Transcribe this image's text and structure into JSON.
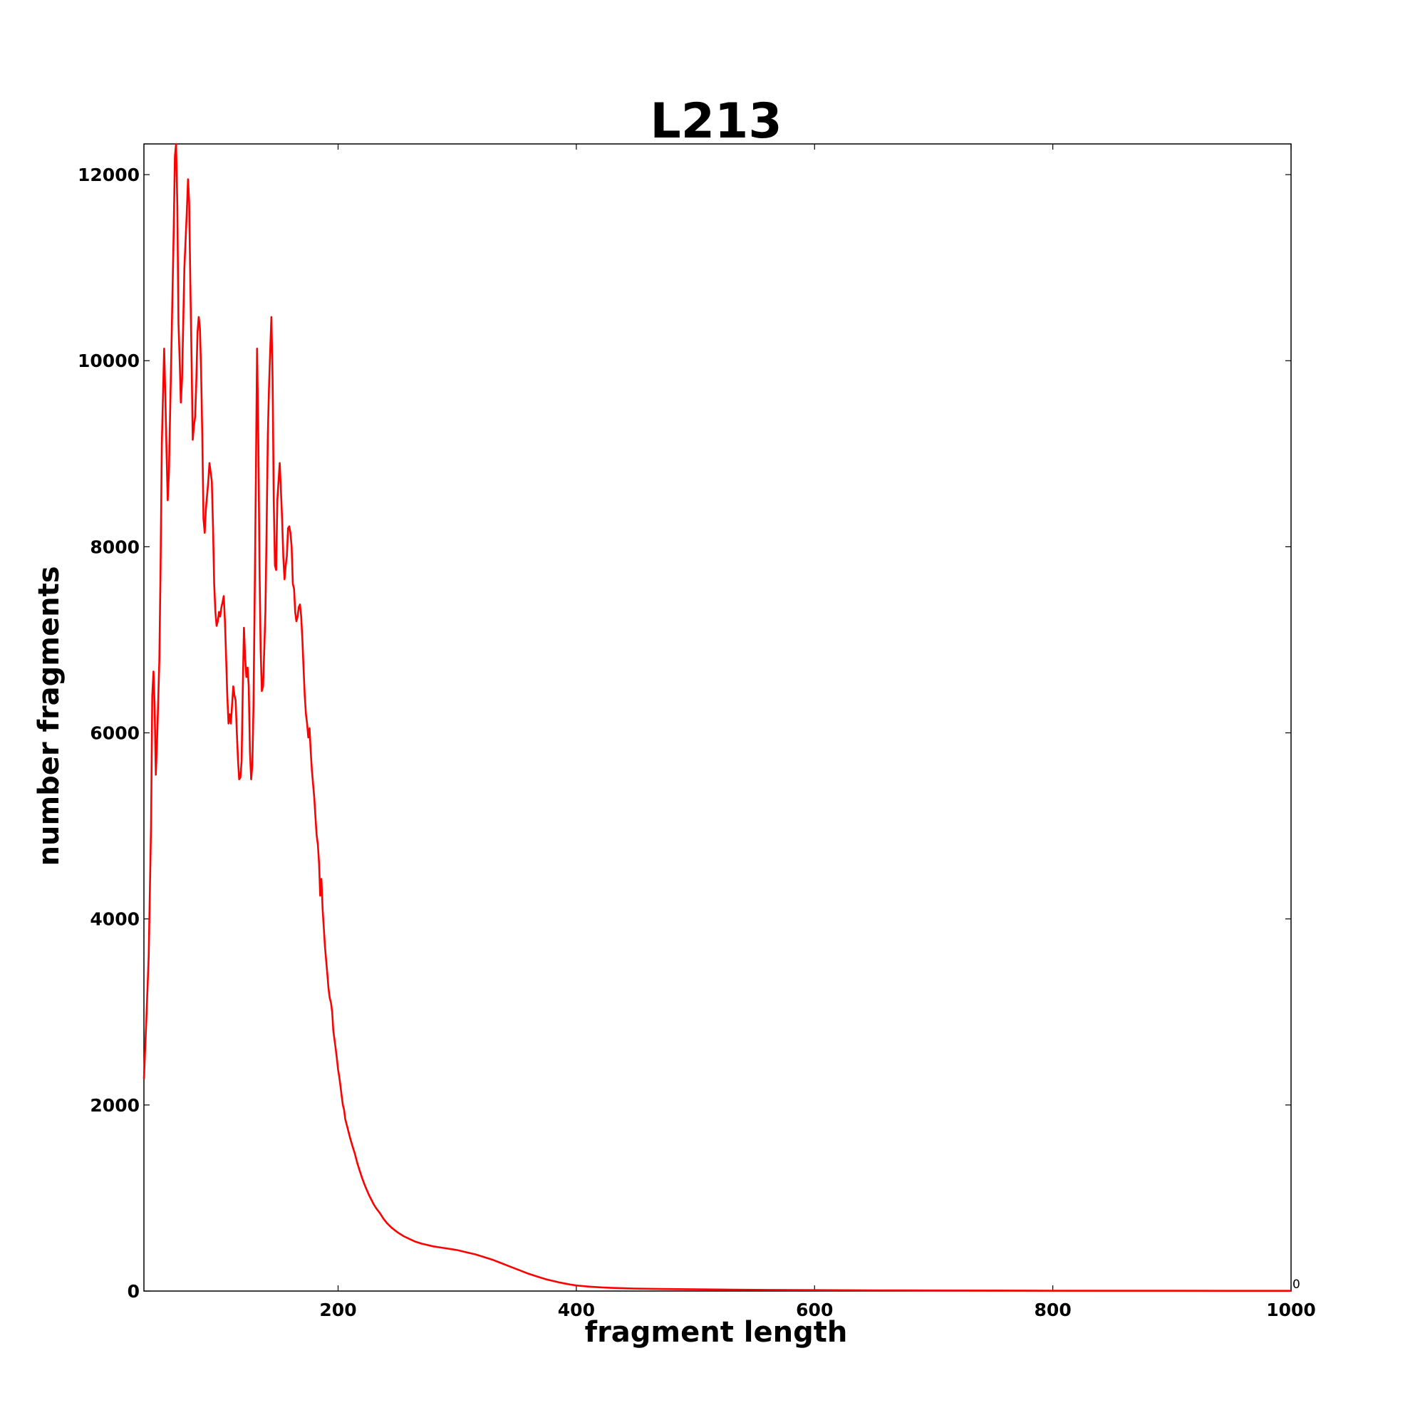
{
  "chart_data": {
    "type": "line",
    "title": "L213",
    "xlabel": "fragment length",
    "ylabel": "number fragments",
    "xlim": [
      37,
      1000
    ],
    "ylim": [
      0,
      12330
    ],
    "x_ticks": [
      200,
      400,
      600,
      800,
      1000
    ],
    "y_ticks": [
      0,
      2000,
      4000,
      6000,
      8000,
      10000,
      12000
    ],
    "x_tick_labels": [
      "200",
      "400",
      "600",
      "800",
      "1000"
    ],
    "y_tick_labels": [
      "0",
      "2000",
      "4000",
      "6000",
      "8000",
      "10000",
      "12000"
    ],
    "corner_annotation": "0",
    "grid": false,
    "legend": "none",
    "series": [
      {
        "color": "#ff0000",
        "points": [
          [
            37,
            2280
          ],
          [
            39,
            2900
          ],
          [
            41,
            3600
          ],
          [
            43,
            5000
          ],
          [
            44,
            6400
          ],
          [
            45,
            6660
          ],
          [
            46,
            6300
          ],
          [
            47,
            5550
          ],
          [
            48,
            5900
          ],
          [
            50,
            6800
          ],
          [
            51,
            7800
          ],
          [
            52,
            9100
          ],
          [
            54,
            10130
          ],
          [
            55,
            9600
          ],
          [
            56,
            9000
          ],
          [
            57,
            8500
          ],
          [
            58,
            8800
          ],
          [
            60,
            10100
          ],
          [
            62,
            11400
          ],
          [
            63,
            12200
          ],
          [
            64,
            12330
          ],
          [
            65,
            11700
          ],
          [
            66,
            10400
          ],
          [
            67,
            10000
          ],
          [
            68,
            9550
          ],
          [
            69,
            9800
          ],
          [
            71,
            11000
          ],
          [
            73,
            11600
          ],
          [
            74,
            11950
          ],
          [
            75,
            11700
          ],
          [
            76,
            10800
          ],
          [
            77,
            10000
          ],
          [
            78,
            9150
          ],
          [
            79,
            9300
          ],
          [
            80,
            9400
          ],
          [
            81,
            9800
          ],
          [
            82,
            10300
          ],
          [
            83,
            10470
          ],
          [
            84,
            10350
          ],
          [
            85,
            9900
          ],
          [
            86,
            9200
          ],
          [
            87,
            8300
          ],
          [
            88,
            8150
          ],
          [
            89,
            8400
          ],
          [
            91,
            8700
          ],
          [
            92,
            8900
          ],
          [
            94,
            8700
          ],
          [
            95,
            8200
          ],
          [
            96,
            7600
          ],
          [
            97,
            7300
          ],
          [
            98,
            7150
          ],
          [
            99,
            7200
          ],
          [
            100,
            7300
          ],
          [
            101,
            7250
          ],
          [
            102,
            7350
          ],
          [
            103,
            7400
          ],
          [
            104,
            7470
          ],
          [
            105,
            7200
          ],
          [
            106,
            6800
          ],
          [
            107,
            6400
          ],
          [
            108,
            6100
          ],
          [
            109,
            6200
          ],
          [
            110,
            6100
          ],
          [
            111,
            6300
          ],
          [
            112,
            6500
          ],
          [
            113,
            6400
          ],
          [
            114,
            6350
          ],
          [
            115,
            6000
          ],
          [
            116,
            5700
          ],
          [
            117,
            5500
          ],
          [
            118,
            5520
          ],
          [
            119,
            5700
          ],
          [
            120,
            6500
          ],
          [
            121,
            7130
          ],
          [
            122,
            6800
          ],
          [
            123,
            6600
          ],
          [
            124,
            6700
          ],
          [
            125,
            6500
          ],
          [
            126,
            5800
          ],
          [
            127,
            5500
          ],
          [
            128,
            5650
          ],
          [
            129,
            6300
          ],
          [
            130,
            7500
          ],
          [
            131,
            8800
          ],
          [
            132,
            10130
          ],
          [
            133,
            9200
          ],
          [
            134,
            7800
          ],
          [
            135,
            6900
          ],
          [
            136,
            6450
          ],
          [
            137,
            6500
          ],
          [
            138,
            6900
          ],
          [
            139,
            7300
          ],
          [
            140,
            8200
          ],
          [
            141,
            9200
          ],
          [
            142,
            9700
          ],
          [
            143,
            10100
          ],
          [
            144,
            10470
          ],
          [
            145,
            9800
          ],
          [
            146,
            8500
          ],
          [
            147,
            7800
          ],
          [
            148,
            7750
          ],
          [
            149,
            8500
          ],
          [
            150,
            8700
          ],
          [
            151,
            8900
          ],
          [
            152,
            8600
          ],
          [
            153,
            8300
          ],
          [
            154,
            7900
          ],
          [
            155,
            7650
          ],
          [
            156,
            7800
          ],
          [
            157,
            7900
          ],
          [
            158,
            8200
          ],
          [
            159,
            8220
          ],
          [
            160,
            8150
          ],
          [
            161,
            8000
          ],
          [
            162,
            7600
          ],
          [
            163,
            7550
          ],
          [
            164,
            7300
          ],
          [
            165,
            7200
          ],
          [
            166,
            7250
          ],
          [
            167,
            7350
          ],
          [
            168,
            7380
          ],
          [
            169,
            7250
          ],
          [
            170,
            7000
          ],
          [
            171,
            6700
          ],
          [
            172,
            6400
          ],
          [
            173,
            6200
          ],
          [
            174,
            6100
          ],
          [
            175,
            5950
          ],
          [
            176,
            6050
          ],
          [
            177,
            5800
          ],
          [
            178,
            5600
          ],
          [
            179,
            5450
          ],
          [
            180,
            5300
          ],
          [
            181,
            5100
          ],
          [
            182,
            4900
          ],
          [
            183,
            4800
          ],
          [
            184,
            4600
          ],
          [
            185,
            4250
          ],
          [
            186,
            4430
          ],
          [
            187,
            4100
          ],
          [
            188,
            3900
          ],
          [
            189,
            3700
          ],
          [
            190,
            3550
          ],
          [
            191,
            3400
          ],
          [
            192,
            3250
          ],
          [
            193,
            3150
          ],
          [
            194,
            3100
          ],
          [
            195,
            3000
          ],
          [
            196,
            2800
          ],
          [
            197,
            2700
          ],
          [
            198,
            2600
          ],
          [
            199,
            2500
          ],
          [
            200,
            2380
          ],
          [
            201,
            2300
          ],
          [
            202,
            2200
          ],
          [
            203,
            2100
          ],
          [
            204,
            2000
          ],
          [
            205,
            1950
          ],
          [
            206,
            1850
          ],
          [
            208,
            1750
          ],
          [
            210,
            1650
          ],
          [
            212,
            1560
          ],
          [
            214,
            1480
          ],
          [
            216,
            1380
          ],
          [
            218,
            1300
          ],
          [
            220,
            1220
          ],
          [
            222,
            1150
          ],
          [
            224,
            1090
          ],
          [
            226,
            1030
          ],
          [
            228,
            980
          ],
          [
            230,
            930
          ],
          [
            232,
            890
          ],
          [
            235,
            840
          ],
          [
            238,
            780
          ],
          [
            241,
            730
          ],
          [
            245,
            680
          ],
          [
            250,
            630
          ],
          [
            255,
            590
          ],
          [
            260,
            560
          ],
          [
            265,
            530
          ],
          [
            270,
            510
          ],
          [
            275,
            495
          ],
          [
            280,
            480
          ],
          [
            285,
            470
          ],
          [
            290,
            460
          ],
          [
            295,
            450
          ],
          [
            300,
            440
          ],
          [
            305,
            425
          ],
          [
            310,
            410
          ],
          [
            315,
            395
          ],
          [
            320,
            375
          ],
          [
            325,
            355
          ],
          [
            330,
            335
          ],
          [
            335,
            310
          ],
          [
            340,
            285
          ],
          [
            345,
            260
          ],
          [
            350,
            235
          ],
          [
            355,
            210
          ],
          [
            360,
            185
          ],
          [
            365,
            165
          ],
          [
            370,
            145
          ],
          [
            375,
            125
          ],
          [
            380,
            110
          ],
          [
            385,
            95
          ],
          [
            390,
            82
          ],
          [
            395,
            70
          ],
          [
            400,
            60
          ],
          [
            410,
            48
          ],
          [
            420,
            40
          ],
          [
            430,
            34
          ],
          [
            440,
            30
          ],
          [
            450,
            26
          ],
          [
            470,
            22
          ],
          [
            500,
            18
          ],
          [
            530,
            15
          ],
          [
            560,
            12
          ],
          [
            600,
            10
          ],
          [
            650,
            8
          ],
          [
            700,
            6
          ],
          [
            750,
            5
          ],
          [
            800,
            4
          ],
          [
            850,
            3
          ],
          [
            900,
            3
          ],
          [
            950,
            2
          ],
          [
            1000,
            2
          ]
        ]
      }
    ]
  }
}
